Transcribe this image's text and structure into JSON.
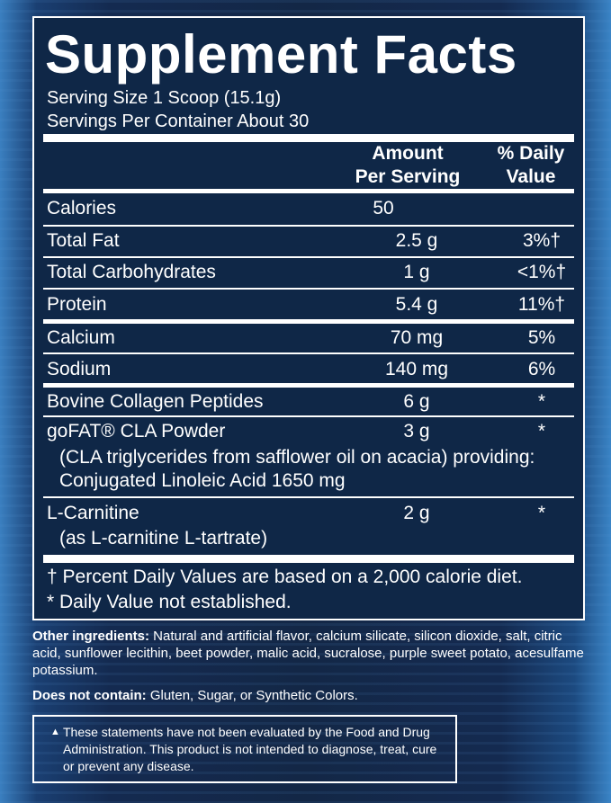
{
  "title": "Supplement Facts",
  "serving_size": "Serving Size 1 Scoop (15.1g)",
  "servings_per_container": "Servings Per Container About 30",
  "headers": {
    "amount_line1": "Amount",
    "amount_line2": "Per Serving",
    "dv_line1": "% Daily",
    "dv_line2": "Value"
  },
  "rows": [
    {
      "name": "Calories",
      "amount": "50",
      "dv": ""
    },
    {
      "name": "Total Fat",
      "amount": "2.5 g",
      "dv": "3%†"
    },
    {
      "name": "Total Carbohydrates",
      "amount": "1 g",
      "dv": "<1%†"
    },
    {
      "name": "Protein",
      "amount": "5.4 g",
      "dv": "11%†"
    },
    {
      "name": "Calcium",
      "amount": "70 mg",
      "dv": "5%"
    },
    {
      "name": "Sodium",
      "amount": "140 mg",
      "dv": "6%"
    },
    {
      "name": "Bovine Collagen Peptides",
      "amount": "6 g",
      "dv": "*"
    },
    {
      "name": "goFAT® CLA Powder",
      "amount": "3 g",
      "dv": "*",
      "sub1": "(CLA triglycerides from safflower oil on acacia) providing:",
      "sub2": "Conjugated Linoleic Acid 1650 mg"
    },
    {
      "name": "L-Carnitine",
      "amount": "2 g",
      "dv": "*",
      "sub1": "(as L-carnitine L-tartrate)"
    }
  ],
  "footnotes": [
    "† Percent Daily Values are based on a 2,000 calorie diet.",
    "* Daily Value not established."
  ],
  "other_ingredients": {
    "label": "Other ingredients:",
    "text": " Natural and artificial flavor, calcium silicate, silicon dioxide, salt, citric acid, sunflower lecithin, beet powder, malic acid, sucralose, purple sweet potato, acesulfame potassium."
  },
  "does_not_contain": {
    "label": "Does not contain:",
    "text": " Gluten, Sugar, or Synthetic Colors."
  },
  "disclaimer": {
    "symbol": "▲",
    "text": "These statements have not been evaluated by the Food and Drug Administration. This product is not intended to diagnose, treat, cure or prevent any disease."
  }
}
